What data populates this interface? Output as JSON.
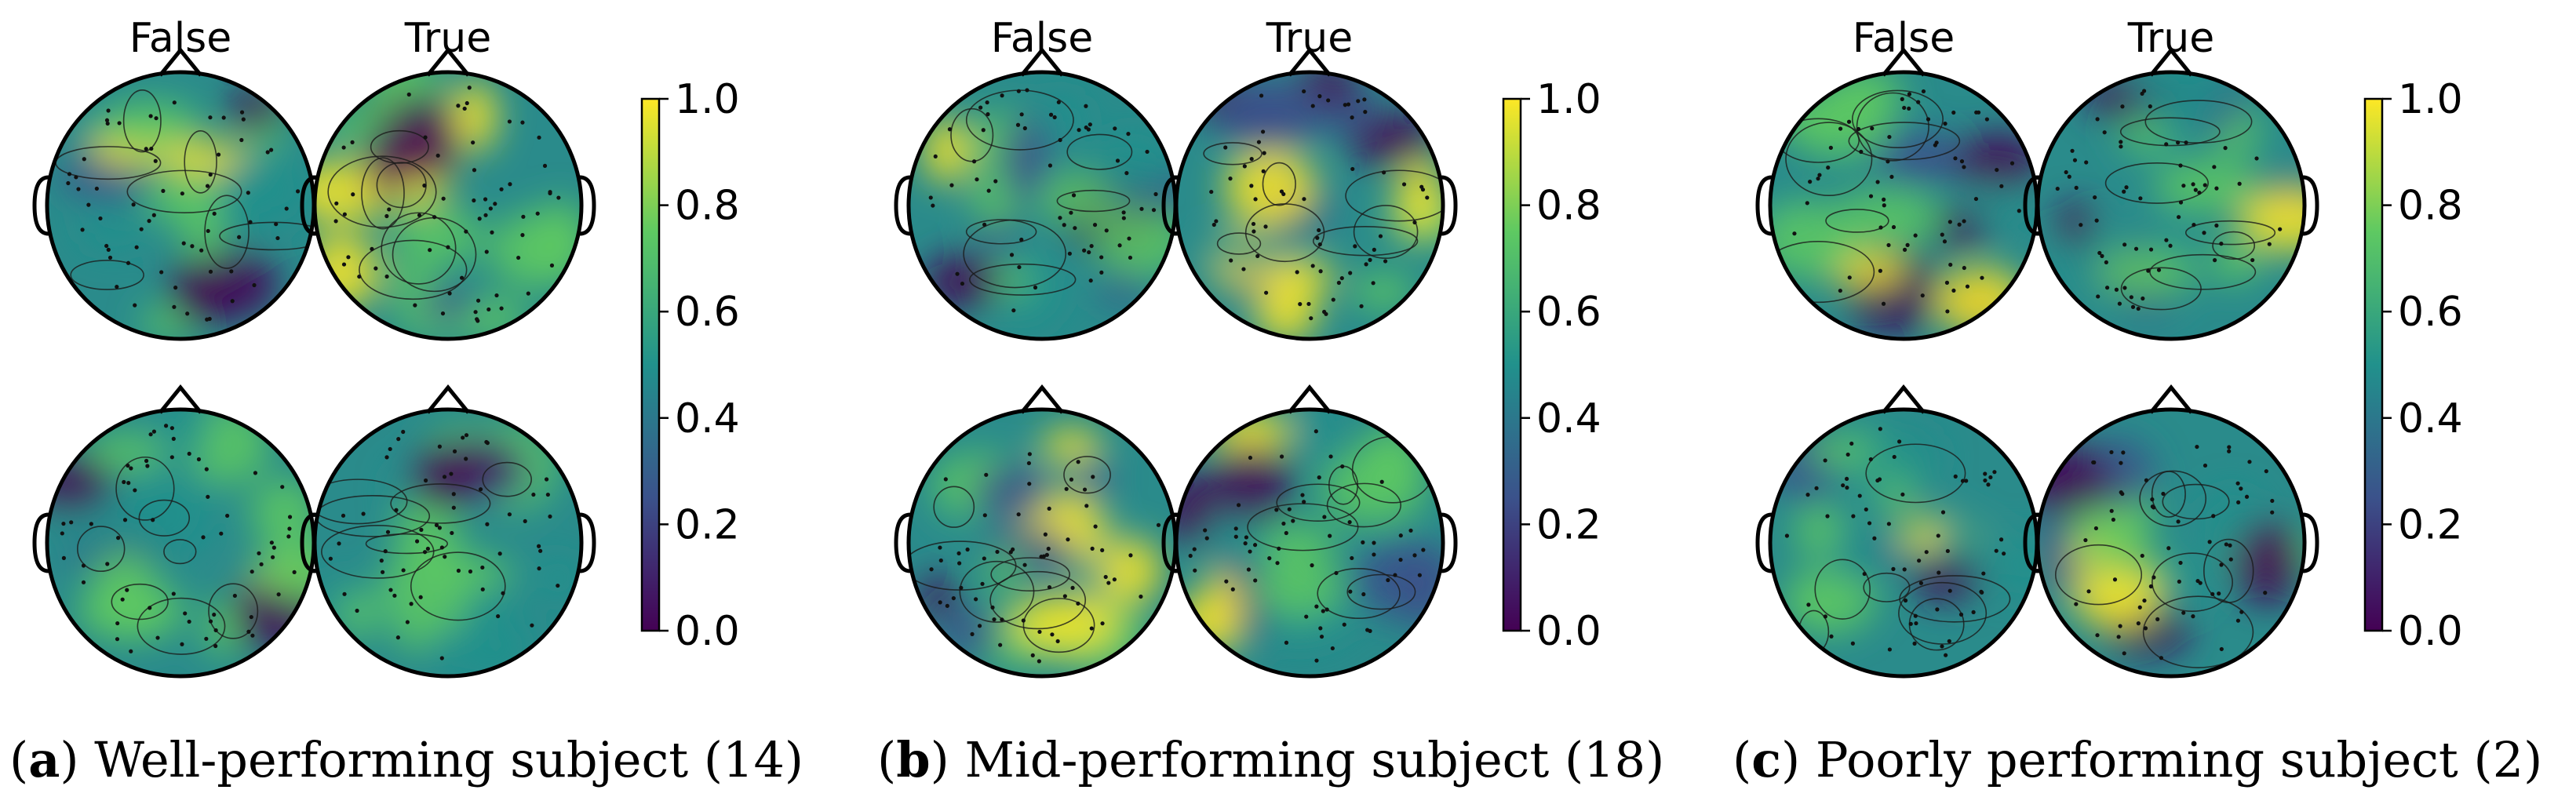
{
  "panels": [
    {
      "id": "a",
      "caption_letter": "a",
      "caption_text": "Well-performing subject (14)",
      "column_titles": [
        "False",
        "True"
      ],
      "colorbar_ticks": [
        "0.0",
        "0.2",
        "0.4",
        "0.6",
        "0.8",
        "1.0"
      ]
    },
    {
      "id": "b",
      "caption_letter": "b",
      "caption_text": "Mid-performing subject (18)",
      "column_titles": [
        "False",
        "True"
      ],
      "colorbar_ticks": [
        "0.0",
        "0.2",
        "0.4",
        "0.6",
        "0.8",
        "1.0"
      ]
    },
    {
      "id": "c",
      "caption_letter": "c",
      "caption_text": "Poorly performing subject (2)",
      "column_titles": [
        "False",
        "True"
      ],
      "colorbar_ticks": [
        "0.0",
        "0.2",
        "0.4",
        "0.6",
        "0.8",
        "1.0"
      ]
    }
  ],
  "colormap": {
    "name": "viridis",
    "range": [
      0.0,
      1.0
    ],
    "stops": [
      "#440154",
      "#3b528b",
      "#21918c",
      "#5ec962",
      "#fde725"
    ]
  }
}
